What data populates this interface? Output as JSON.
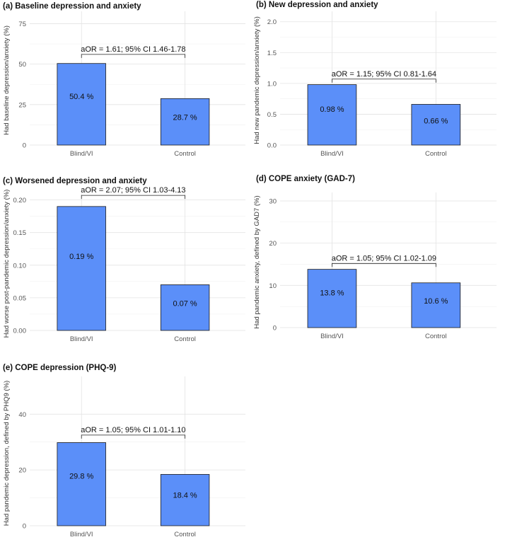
{
  "colors": {
    "bar_fill": "#5b8ff9",
    "bar_stroke": "#1a1a1a",
    "grid": "#e3e3e3"
  },
  "chart_data": [
    {
      "type": "bar",
      "title": "(a) Baseline depression and anxiety",
      "ylabel": "Had baseline depression/anxiety (%)",
      "categories": [
        "Blind/VI",
        "Control"
      ],
      "values": [
        50.4,
        28.7
      ],
      "value_labels": [
        "50.4 %",
        "28.7 %"
      ],
      "yticks": [
        0,
        25,
        50,
        75
      ],
      "ytick_labels": [
        "0",
        "25",
        "50",
        "75"
      ],
      "ylim": [
        0,
        80
      ],
      "annotation": "aOR = 1.61; 95% CI 1.46-1.78",
      "annotation_at": 56
    },
    {
      "type": "bar",
      "title": "(b) New depression and anxiety",
      "ylabel": "Had new pandemic depression/anxiety (%)",
      "categories": [
        "Blind/VI",
        "Control"
      ],
      "values": [
        0.98,
        0.66
      ],
      "value_labels": [
        "0.98 %",
        "0.66 %"
      ],
      "yticks": [
        0,
        0.5,
        1,
        1.5,
        2
      ],
      "ytick_labels": [
        "0.0",
        "0.5",
        "1.0",
        "1.5",
        "2.0"
      ],
      "ylim": [
        0,
        2.1
      ],
      "annotation": "aOR = 1.15; 95% CI 0.81-1.64",
      "annotation_at": 1.07
    },
    {
      "type": "bar",
      "title": "(c) Worsened depression and anxiety",
      "ylabel": "Had worse post-pandemic depression/anxiety (%)",
      "categories": [
        "Blind/VI",
        "Control"
      ],
      "values": [
        0.19,
        0.07
      ],
      "value_labels": [
        "0.19 %",
        "0.07 %"
      ],
      "yticks": [
        0,
        0.05,
        0.1,
        0.15,
        0.2
      ],
      "ytick_labels": [
        "0.00",
        "0.05",
        "0.10",
        "0.15",
        "0.20"
      ],
      "ylim": [
        0,
        0.205
      ],
      "annotation": "aOR = 2.07; 95% CI 1.03-4.13",
      "annotation_at": 0.207
    },
    {
      "type": "bar",
      "title": "(d) COPE anxiety (GAD-7)",
      "ylabel": "Had pandemic anxiety, defined by GAD7 (%)",
      "categories": [
        "Blind/VI",
        "Control"
      ],
      "values": [
        13.8,
        10.6
      ],
      "value_labels": [
        "13.8 %",
        "10.6 %"
      ],
      "yticks": [
        0,
        10,
        20,
        30
      ],
      "ytick_labels": [
        "0",
        "10",
        "20",
        "30"
      ],
      "ylim": [
        0,
        31
      ],
      "annotation": "aOR = 1.05; 95% CI 1.02-1.09",
      "annotation_at": 15.2
    },
    {
      "type": "bar",
      "title": "(e) COPE depression (PHQ-9)",
      "ylabel": "Had pandemic depression, defined by PHQ9 (%)",
      "categories": [
        "Blind/VI",
        "Control"
      ],
      "values": [
        29.8,
        18.4
      ],
      "value_labels": [
        "29.8 %",
        "18.4 %"
      ],
      "yticks": [
        0,
        20,
        40
      ],
      "ytick_labels": [
        "0",
        "20",
        "40"
      ],
      "ylim": [
        0,
        52
      ],
      "annotation": "aOR = 1.05; 95% CI 1.01-1.10",
      "annotation_at": 32.5
    }
  ]
}
